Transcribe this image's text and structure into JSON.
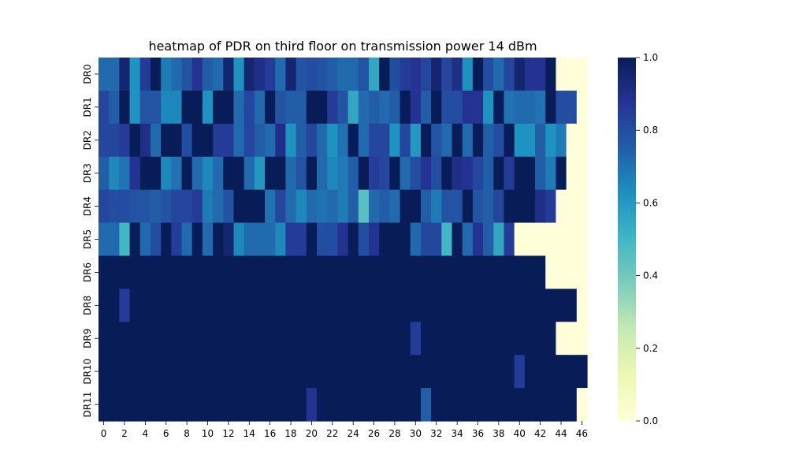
{
  "chart_data": {
    "type": "heatmap",
    "title": "heatmap of PDR on third floor on transmission power 14 dBm",
    "xlabel": "",
    "ylabel": "",
    "x_ticks": [
      "0",
      "2",
      "4",
      "6",
      "8",
      "10",
      "12",
      "14",
      "16",
      "18",
      "20",
      "22",
      "24",
      "26",
      "28",
      "30",
      "32",
      "34",
      "36",
      "38",
      "40",
      "42",
      "44",
      "46"
    ],
    "y_labels": [
      "DR0",
      "DR1",
      "DR2",
      "DR3",
      "DR4",
      "DR5",
      "DR6",
      "DR8",
      "DR9",
      "DR10",
      "DR11"
    ],
    "x_values": [
      0,
      1,
      2,
      3,
      4,
      5,
      6,
      7,
      8,
      9,
      10,
      11,
      12,
      13,
      14,
      15,
      16,
      17,
      18,
      19,
      20,
      21,
      22,
      23,
      24,
      25,
      26,
      27,
      28,
      29,
      30,
      31,
      32,
      33,
      34,
      35,
      36,
      37,
      38,
      39,
      40,
      41,
      42,
      43,
      44,
      45,
      46
    ],
    "colorbar": {
      "min": 0.0,
      "max": 1.0,
      "ticks": [
        "0.0",
        "0.2",
        "0.4",
        "0.6",
        "0.8",
        "1.0"
      ],
      "colormap": "YlGnBu",
      "stops": [
        "#ffffd9",
        "#edf8b1",
        "#c7e9b4",
        "#7fcdbb",
        "#41b6c4",
        "#1d91c0",
        "#225ea8",
        "#253494",
        "#081d58"
      ]
    },
    "values": [
      [
        0.72,
        0.72,
        0.95,
        0.62,
        0.85,
        1.0,
        0.68,
        0.72,
        0.78,
        0.88,
        0.75,
        0.72,
        0.95,
        0.62,
        0.95,
        0.9,
        0.85,
        0.72,
        0.95,
        0.78,
        0.8,
        0.78,
        0.75,
        0.72,
        0.72,
        0.78,
        0.55,
        1.0,
        0.8,
        0.85,
        0.88,
        0.82,
        0.95,
        0.82,
        0.9,
        0.62,
        1.0,
        0.8,
        0.72,
        0.82,
        0.95,
        0.88,
        0.88,
        1.0,
        0.0,
        0.0,
        0.0
      ],
      [
        0.82,
        0.75,
        1.0,
        0.62,
        0.78,
        0.78,
        0.65,
        0.65,
        1.0,
        1.0,
        0.62,
        1.0,
        1.0,
        0.72,
        0.82,
        0.72,
        1.0,
        0.78,
        0.75,
        0.75,
        1.0,
        1.0,
        0.85,
        0.78,
        0.55,
        0.72,
        0.75,
        0.72,
        0.75,
        1.0,
        0.88,
        0.75,
        1.0,
        0.8,
        0.8,
        0.88,
        0.88,
        0.62,
        1.0,
        0.7,
        0.72,
        0.72,
        0.7,
        1.0,
        0.8,
        0.8,
        0.0
      ],
      [
        0.82,
        0.82,
        0.85,
        1.0,
        0.9,
        0.72,
        1.0,
        1.0,
        0.8,
        1.0,
        1.0,
        0.85,
        0.85,
        0.72,
        0.82,
        0.75,
        0.72,
        0.9,
        0.62,
        0.75,
        0.82,
        0.72,
        0.62,
        0.7,
        1.0,
        0.72,
        0.82,
        0.82,
        0.62,
        0.82,
        0.6,
        1.0,
        0.78,
        0.72,
        1.0,
        0.72,
        1.0,
        0.75,
        0.8,
        1.0,
        0.62,
        0.62,
        0.75,
        0.62,
        0.68,
        0.0,
        0.0
      ],
      [
        0.75,
        0.65,
        0.7,
        0.88,
        1.0,
        1.0,
        0.65,
        0.7,
        1.0,
        0.72,
        0.65,
        0.72,
        1.0,
        1.0,
        0.72,
        0.6,
        1.0,
        1.0,
        0.72,
        0.78,
        1.0,
        0.72,
        0.65,
        0.68,
        0.75,
        1.0,
        0.85,
        0.82,
        1.0,
        0.72,
        0.8,
        0.88,
        0.8,
        1.0,
        0.9,
        0.88,
        0.82,
        0.75,
        1.0,
        0.85,
        1.0,
        1.0,
        0.75,
        0.68,
        1.0,
        0.0,
        0.0
      ],
      [
        0.82,
        0.8,
        0.8,
        0.78,
        0.78,
        0.75,
        0.78,
        0.82,
        0.82,
        0.85,
        0.68,
        0.72,
        0.78,
        1.0,
        1.0,
        1.0,
        0.7,
        0.82,
        0.72,
        0.65,
        0.72,
        0.7,
        0.72,
        0.68,
        0.75,
        0.45,
        0.72,
        0.75,
        0.72,
        1.0,
        1.0,
        0.75,
        0.68,
        0.78,
        0.78,
        1.0,
        0.78,
        0.75,
        0.82,
        1.0,
        1.0,
        1.0,
        0.9,
        0.85,
        0.0,
        0.0,
        0.0
      ],
      [
        0.72,
        0.72,
        0.5,
        1.0,
        0.72,
        0.8,
        1.0,
        0.85,
        0.72,
        1.0,
        0.72,
        1.0,
        0.95,
        0.65,
        0.72,
        0.72,
        0.72,
        0.65,
        0.85,
        0.85,
        1.0,
        0.8,
        0.8,
        0.88,
        1.0,
        0.8,
        0.88,
        1.0,
        1.0,
        1.0,
        0.72,
        0.82,
        0.82,
        0.5,
        1.0,
        0.72,
        0.88,
        0.75,
        0.55,
        0.85,
        0.0,
        0.0,
        0.0,
        0.0,
        0.0,
        0.0,
        0.0
      ],
      [
        1.0,
        1.0,
        1.0,
        1.0,
        1.0,
        1.0,
        1.0,
        1.0,
        1.0,
        1.0,
        1.0,
        1.0,
        1.0,
        1.0,
        1.0,
        1.0,
        1.0,
        1.0,
        1.0,
        1.0,
        1.0,
        1.0,
        1.0,
        1.0,
        1.0,
        1.0,
        1.0,
        1.0,
        1.0,
        1.0,
        1.0,
        1.0,
        1.0,
        1.0,
        1.0,
        1.0,
        1.0,
        1.0,
        1.0,
        1.0,
        1.0,
        1.0,
        1.0,
        0.0,
        0.0,
        0.0,
        0.0
      ],
      [
        1.0,
        1.0,
        0.85,
        1.0,
        1.0,
        1.0,
        1.0,
        1.0,
        1.0,
        1.0,
        1.0,
        1.0,
        1.0,
        1.0,
        1.0,
        1.0,
        1.0,
        1.0,
        1.0,
        1.0,
        1.0,
        1.0,
        1.0,
        1.0,
        1.0,
        1.0,
        1.0,
        1.0,
        1.0,
        1.0,
        1.0,
        1.0,
        1.0,
        1.0,
        1.0,
        1.0,
        1.0,
        1.0,
        1.0,
        1.0,
        1.0,
        1.0,
        1.0,
        1.0,
        1.0,
        1.0,
        0.0
      ],
      [
        1.0,
        1.0,
        1.0,
        1.0,
        1.0,
        1.0,
        1.0,
        1.0,
        1.0,
        1.0,
        1.0,
        1.0,
        1.0,
        1.0,
        1.0,
        1.0,
        1.0,
        1.0,
        1.0,
        1.0,
        1.0,
        1.0,
        1.0,
        1.0,
        1.0,
        1.0,
        1.0,
        1.0,
        1.0,
        1.0,
        0.85,
        1.0,
        1.0,
        1.0,
        1.0,
        1.0,
        1.0,
        1.0,
        1.0,
        1.0,
        1.0,
        1.0,
        1.0,
        1.0,
        0.0,
        0.0,
        0.0
      ],
      [
        1.0,
        1.0,
        1.0,
        1.0,
        1.0,
        1.0,
        1.0,
        1.0,
        1.0,
        1.0,
        1.0,
        1.0,
        1.0,
        1.0,
        1.0,
        1.0,
        1.0,
        1.0,
        1.0,
        1.0,
        1.0,
        1.0,
        1.0,
        1.0,
        1.0,
        1.0,
        1.0,
        1.0,
        1.0,
        1.0,
        1.0,
        1.0,
        1.0,
        1.0,
        1.0,
        1.0,
        1.0,
        1.0,
        1.0,
        1.0,
        0.85,
        1.0,
        1.0,
        1.0,
        1.0,
        1.0,
        1.0
      ],
      [
        1.0,
        1.0,
        1.0,
        1.0,
        1.0,
        1.0,
        1.0,
        1.0,
        1.0,
        1.0,
        1.0,
        1.0,
        1.0,
        1.0,
        1.0,
        1.0,
        1.0,
        1.0,
        1.0,
        1.0,
        0.88,
        1.0,
        1.0,
        1.0,
        1.0,
        1.0,
        1.0,
        1.0,
        1.0,
        1.0,
        1.0,
        0.75,
        1.0,
        1.0,
        1.0,
        1.0,
        1.0,
        1.0,
        1.0,
        1.0,
        1.0,
        1.0,
        1.0,
        1.0,
        1.0,
        1.0,
        0.0
      ]
    ]
  }
}
